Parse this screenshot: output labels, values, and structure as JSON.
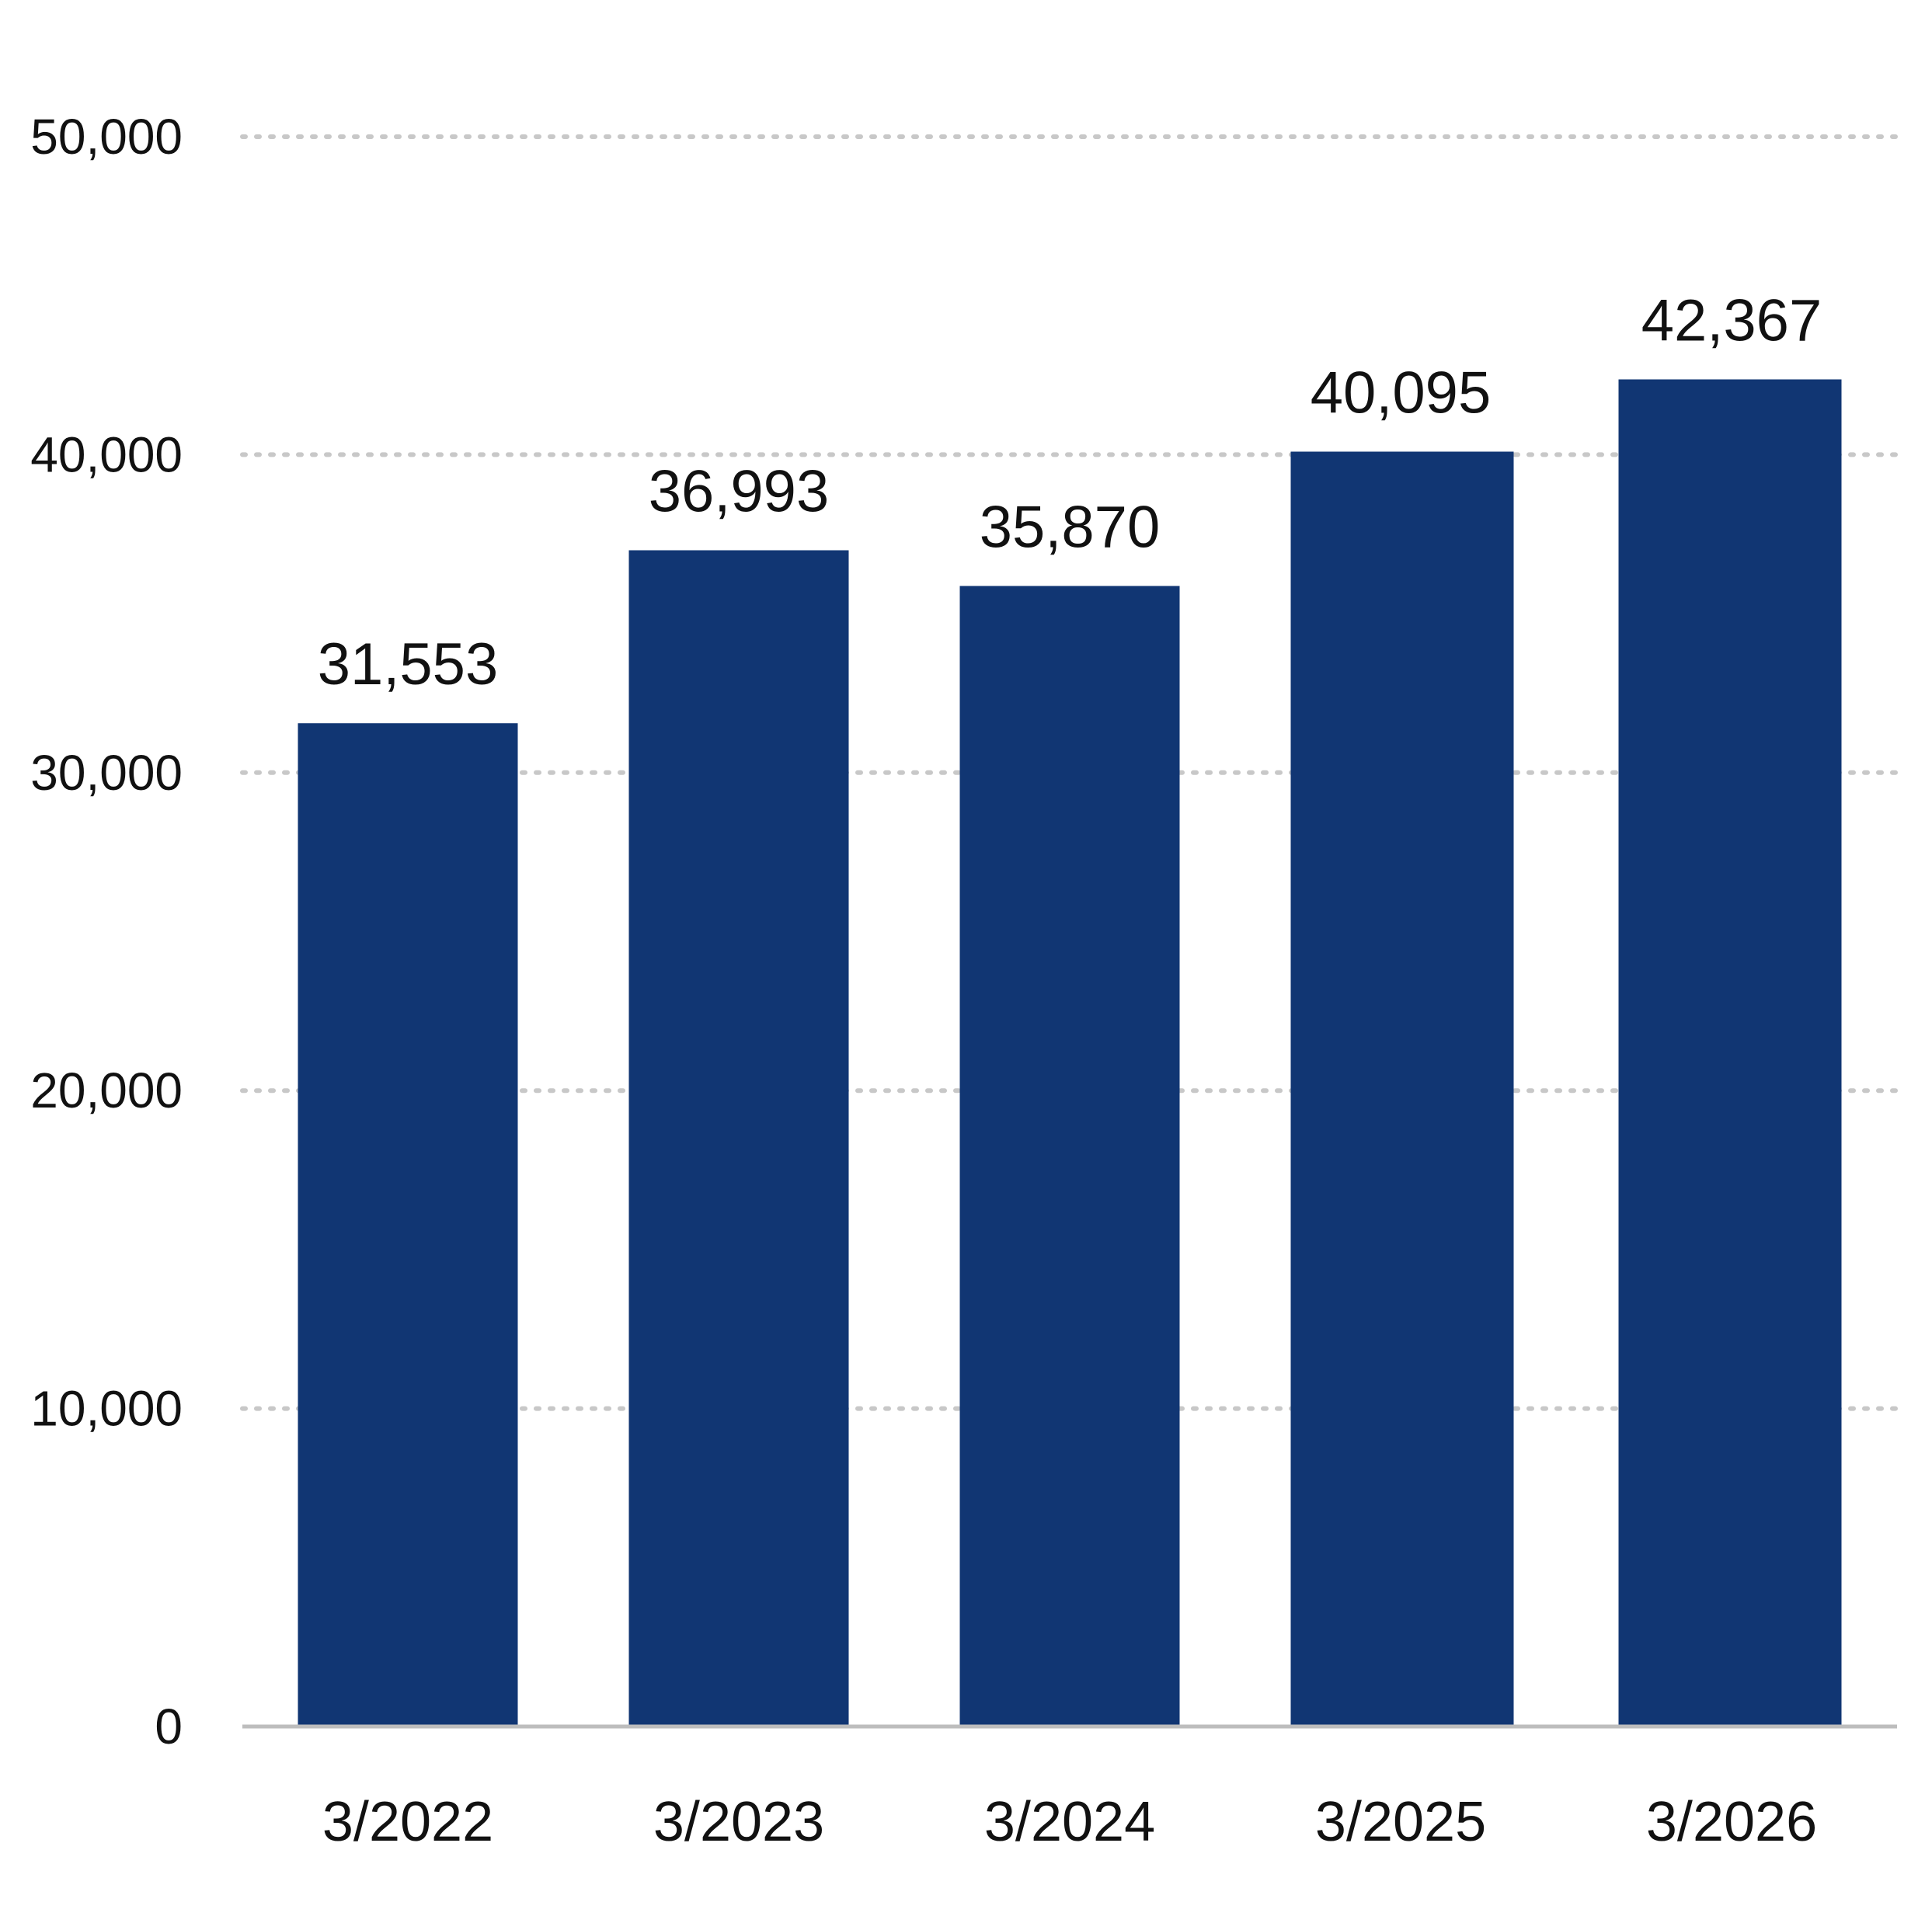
{
  "chart_data": {
    "type": "bar",
    "categories": [
      "3/2022",
      "3/2023",
      "3/2024",
      "3/2025",
      "3/2026"
    ],
    "values": [
      31553,
      36993,
      35870,
      40095,
      42367
    ],
    "data_labels": [
      "31,553",
      "36,993",
      "35,870",
      "40,095",
      "42,367"
    ],
    "title": "",
    "xlabel": "",
    "ylabel": "",
    "ylim": [
      0,
      50000
    ],
    "yticks": [
      0,
      10000,
      20000,
      30000,
      40000,
      50000
    ],
    "ytick_labels": [
      "0",
      "10,000",
      "20,000",
      "30,000",
      "40,000",
      "50,000"
    ],
    "grid": true,
    "legend": "none",
    "bar_color": "#113673"
  }
}
